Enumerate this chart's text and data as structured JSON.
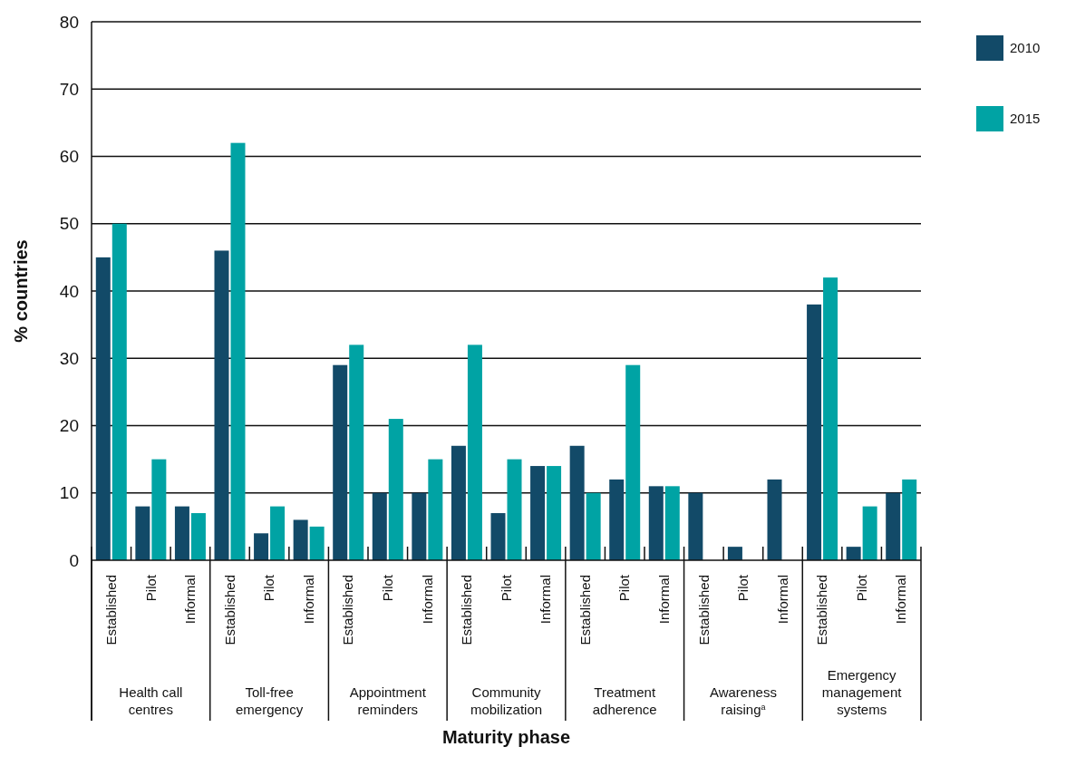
{
  "chart_data": {
    "type": "bar",
    "xlabel": "Maturity phase",
    "ylabel": "% countries",
    "categories": [
      "Established",
      "Pilot",
      "Informal",
      "Established",
      "Pilot",
      "Informal",
      "Established",
      "Pilot",
      "Informal",
      "Established",
      "Pilot",
      "Informal",
      "Established",
      "Pilot",
      "Informal",
      "Established",
      "Pilot",
      "Informal",
      "Established",
      "Pilot",
      "Informal"
    ],
    "annotations": [
      "Health call centres",
      "Toll-free emergency",
      "Appointment reminders",
      "Community mobilization",
      "Treatment adherence",
      "Awareness raising$^{a}$",
      "Emergency management systems"
    ],
    "series": [
      {
        "name": "2010",
        "color": "#124a68",
        "values": [
          45,
          8,
          8,
          46,
          4,
          6,
          29,
          10,
          10,
          17,
          7,
          14,
          17,
          12,
          11,
          10,
          2,
          12,
          38,
          2,
          10
        ]
      },
      {
        "name": "2015",
        "color": "#00a3a4",
        "values": [
          50,
          15,
          7,
          62,
          8,
          5,
          32,
          21,
          15,
          32,
          15,
          14,
          10,
          29,
          11,
          0,
          0,
          0,
          42,
          8,
          12
        ]
      }
    ],
    "ylim": [
      0,
      80
    ],
    "yticks": [
      0,
      10,
      20,
      30,
      40,
      50,
      60,
      70,
      80
    ],
    "grid": "y",
    "legend": "top right"
  }
}
